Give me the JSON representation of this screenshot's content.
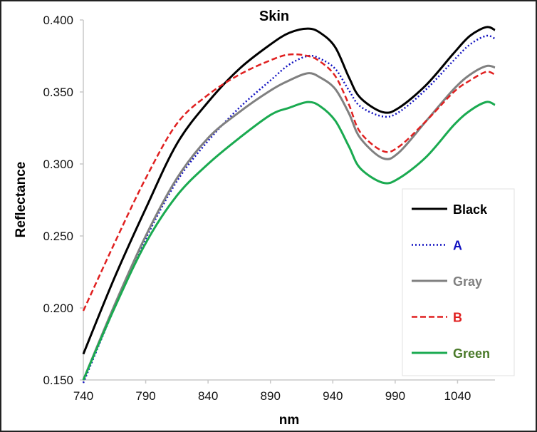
{
  "chart_data": {
    "type": "line",
    "title": "Skin",
    "xlabel": "nm",
    "ylabel": "Reflectance",
    "xlim": [
      740,
      1070
    ],
    "ylim": [
      0.15,
      0.4
    ],
    "xticks": [
      "740",
      "790",
      "840",
      "890",
      "940",
      "990",
      "1040"
    ],
    "yticks": [
      "0.150",
      "0.200",
      "0.250",
      "0.300",
      "0.350",
      "0.400"
    ],
    "grid": false,
    "legend_position": "bottom-right",
    "x": [
      740,
      765,
      790,
      815,
      840,
      865,
      890,
      905,
      920,
      930,
      942,
      953,
      962,
      980,
      993,
      1015,
      1037,
      1050,
      1063,
      1070
    ],
    "series": [
      {
        "name": "Black",
        "color": "#000000",
        "dash": "solid",
        "label_color": "#000000",
        "values": [
          0.168,
          0.221,
          0.269,
          0.314,
          0.343,
          0.366,
          0.383,
          0.391,
          0.394,
          0.391,
          0.381,
          0.36,
          0.346,
          0.336,
          0.339,
          0.355,
          0.377,
          0.389,
          0.395,
          0.393
        ]
      },
      {
        "name": "A",
        "color": "#1010c0",
        "dash": "dotted",
        "label_color": "#1010c0",
        "values": [
          0.148,
          0.2,
          0.248,
          0.288,
          0.316,
          0.339,
          0.358,
          0.369,
          0.375,
          0.373,
          0.366,
          0.351,
          0.34,
          0.333,
          0.336,
          0.352,
          0.372,
          0.383,
          0.389,
          0.387
        ]
      },
      {
        "name": "Gray",
        "color": "#808080",
        "dash": "solid",
        "label_color": "#808080",
        "values": [
          0.15,
          0.202,
          0.25,
          0.29,
          0.318,
          0.336,
          0.351,
          0.358,
          0.363,
          0.36,
          0.352,
          0.335,
          0.318,
          0.304,
          0.308,
          0.33,
          0.352,
          0.362,
          0.368,
          0.367
        ]
      },
      {
        "name": "B",
        "color": "#e02020",
        "dash": "dashed",
        "label_color": "#e02020",
        "values": [
          0.198,
          0.245,
          0.29,
          0.328,
          0.348,
          0.362,
          0.372,
          0.376,
          0.375,
          0.371,
          0.361,
          0.341,
          0.322,
          0.309,
          0.312,
          0.33,
          0.35,
          0.358,
          0.364,
          0.362
        ]
      },
      {
        "name": "Green",
        "color": "#1aaa50",
        "dash": "solid",
        "label_color": "#4a7a2a",
        "values": [
          0.15,
          0.2,
          0.245,
          0.278,
          0.3,
          0.318,
          0.334,
          0.339,
          0.343,
          0.34,
          0.33,
          0.312,
          0.297,
          0.287,
          0.29,
          0.305,
          0.327,
          0.337,
          0.343,
          0.341
        ]
      }
    ]
  }
}
